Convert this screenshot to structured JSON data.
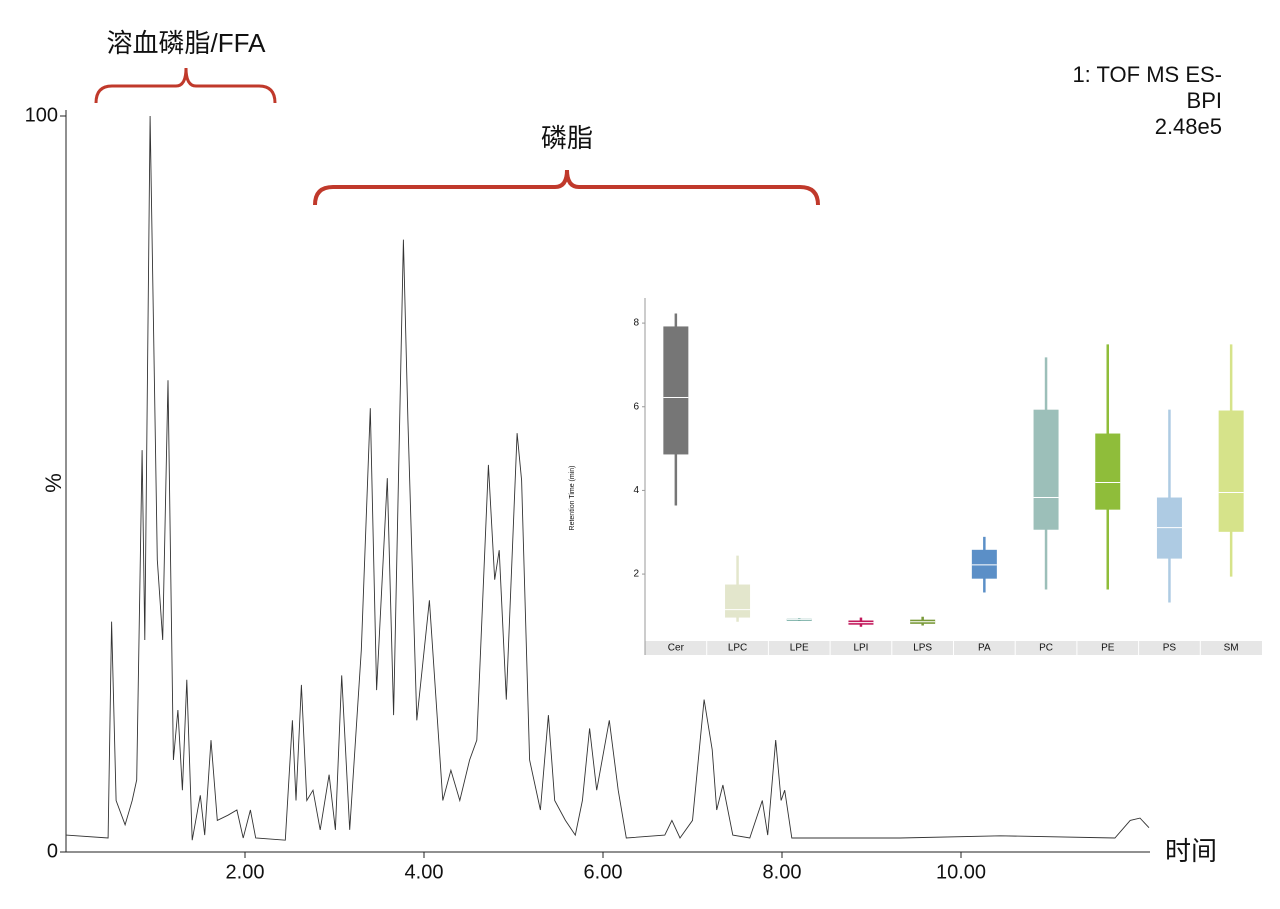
{
  "chart_data": [
    {
      "type": "line",
      "annotations": [
        "溶血磷脂/FFA",
        "磷脂"
      ],
      "instrument": [
        "1: TOF MS ES-",
        "BPI",
        "2.48e5"
      ],
      "ylabel": "%",
      "xlabel": "时间",
      "color": "#333333",
      "xlim": [
        0,
        12.1
      ],
      "ylim": [
        0,
        100
      ],
      "xticks": [
        {
          "value": 2,
          "label": "2.00"
        },
        {
          "value": 4,
          "label": "4.00"
        },
        {
          "value": 6,
          "label": "6.00"
        },
        {
          "value": 8,
          "label": "8.00"
        },
        {
          "value": 10,
          "label": "10.00"
        }
      ],
      "yticks": [
        0,
        100
      ],
      "x": [
        0,
        0.47,
        0.51,
        0.56,
        0.66,
        0.74,
        0.79,
        0.85,
        0.88,
        0.94,
        1.02,
        1.08,
        1.14,
        1.2,
        1.25,
        1.3,
        1.35,
        1.41,
        1.5,
        1.55,
        1.62,
        1.69,
        1.81,
        1.91,
        1.98,
        2.06,
        2.12,
        2.45,
        2.53,
        2.57,
        2.63,
        2.69,
        2.76,
        2.84,
        2.94,
        3.01,
        3.08,
        3.17,
        3.3,
        3.4,
        3.47,
        3.59,
        3.66,
        3.77,
        3.82,
        3.92,
        4.06,
        4.21,
        4.3,
        4.4,
        4.51,
        4.59,
        4.72,
        4.79,
        4.84,
        4.92,
        5.04,
        5.09,
        5.18,
        5.3,
        5.39,
        5.46,
        5.58,
        5.69,
        5.77,
        5.85,
        5.93,
        6.07,
        6.17,
        6.26,
        6.69,
        6.77,
        6.86,
        7.0,
        7.13,
        7.22,
        7.27,
        7.34,
        7.45,
        7.64,
        7.78,
        7.84,
        7.93,
        7.99,
        8.03,
        8.11,
        9.32,
        10.44,
        11.72,
        11.89,
        12.0,
        12.1
      ],
      "values": [
        2.3,
        1.9,
        31.3,
        7,
        3.7,
        7,
        9.8,
        54.6,
        28.8,
        100,
        39.7,
        28.8,
        64.1,
        12.5,
        19.3,
        8.4,
        23.4,
        1.6,
        7.7,
        2.3,
        15.2,
        4.3,
        5,
        5.7,
        1.9,
        5.7,
        1.9,
        1.6,
        17.9,
        7,
        22.7,
        7,
        8.4,
        3,
        10.5,
        3,
        24,
        3,
        27.4,
        60.3,
        22,
        50.8,
        18.6,
        83.2,
        58.7,
        17.9,
        34.2,
        7,
        11.1,
        7,
        12.5,
        15.2,
        52.6,
        37,
        41,
        20.7,
        56.9,
        50.5,
        12.5,
        5.7,
        18.6,
        7,
        4.3,
        2.3,
        7,
        16.8,
        8.4,
        17.9,
        8.4,
        1.9,
        2.3,
        4.3,
        1.9,
        4.3,
        20.7,
        13.9,
        5.7,
        9.1,
        2.3,
        1.9,
        7,
        2.3,
        15.2,
        7,
        8.4,
        1.9,
        1.9,
        2.2,
        1.9,
        4.3,
        4.6,
        3.3
      ]
    },
    {
      "type": "box",
      "ylabel": "Retention Time (min)",
      "ylim": [
        0.4,
        8.6
      ],
      "yticks": [
        2,
        4,
        6,
        8
      ],
      "categories": [
        "Cer",
        "LPC",
        "LPE",
        "LPI",
        "LPS",
        "PA",
        "PC",
        "PE",
        "PS",
        "SM"
      ],
      "boxes": [
        {
          "color": "#767676",
          "min": 3.64,
          "q1": 4.86,
          "median": 6.22,
          "q3": 7.92,
          "max": 8.23
        },
        {
          "color": "#e3e6cc",
          "min": 0.86,
          "q1": 0.96,
          "median": 1.15,
          "q3": 1.75,
          "max": 2.44
        },
        {
          "color": "#5b9e92",
          "min": 0.88,
          "q1": 0.9,
          "median": 0.91,
          "q3": 0.93,
          "max": 0.94
        },
        {
          "color": "#c2185b",
          "min": 0.74,
          "q1": 0.79,
          "median": 0.84,
          "q3": 0.89,
          "max": 0.96
        },
        {
          "color": "#7a9a3a",
          "min": 0.77,
          "q1": 0.81,
          "median": 0.86,
          "q3": 0.91,
          "max": 0.98
        },
        {
          "color": "#5b8fc7",
          "min": 1.56,
          "q1": 1.89,
          "median": 2.22,
          "q3": 2.58,
          "max": 2.89
        },
        {
          "color": "#9cbfb9",
          "min": 1.63,
          "q1": 3.06,
          "median": 3.83,
          "q3": 5.93,
          "max": 7.18
        },
        {
          "color": "#8fbd3a",
          "min": 1.63,
          "q1": 3.54,
          "median": 4.19,
          "q3": 5.36,
          "max": 7.49
        },
        {
          "color": "#aecbe3",
          "min": 1.32,
          "q1": 2.37,
          "median": 3.11,
          "q3": 3.83,
          "max": 5.93
        },
        {
          "color": "#d6e38a",
          "min": 1.94,
          "q1": 3.01,
          "median": 3.95,
          "q3": 5.91,
          "max": 7.49
        }
      ]
    }
  ]
}
